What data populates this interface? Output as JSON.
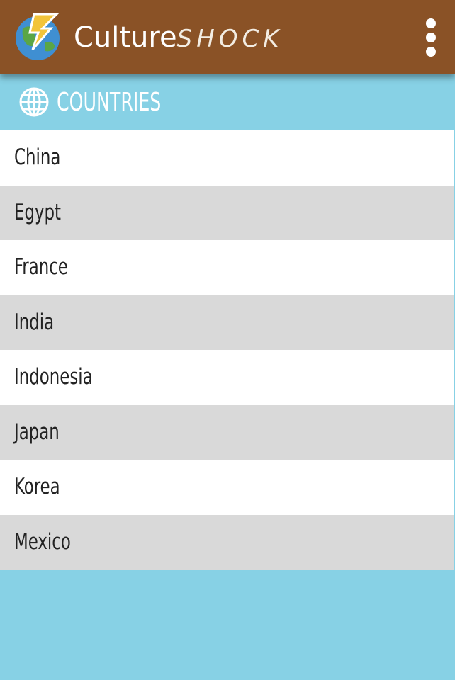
{
  "header": {
    "title_part1": "Culture",
    "title_part2": "SHOCK"
  },
  "section": {
    "title": "COUNTRIES"
  },
  "countries": [
    "China",
    "Egypt",
    "France",
    "India",
    "Indonesia",
    "Japan",
    "Korea",
    "Mexico"
  ]
}
